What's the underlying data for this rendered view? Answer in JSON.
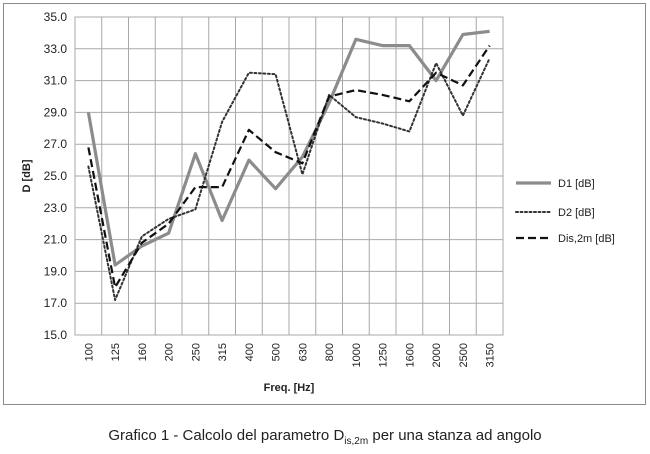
{
  "caption": {
    "prefix": "Grafico 1 - Calcolo del parametro D",
    "subscript": "is,2m",
    "suffix": " per una stanza ad angolo"
  },
  "chart_data": {
    "type": "line",
    "xlabel": "Freq. [Hz]",
    "ylabel": "D [dB]",
    "ylim": [
      15.0,
      35.0
    ],
    "yticks": [
      "15.0",
      "17.0",
      "19.0",
      "21.0",
      "23.0",
      "25.0",
      "27.0",
      "29.0",
      "31.0",
      "33.0",
      "35.0"
    ],
    "categories": [
      "100",
      "125",
      "160",
      "200",
      "250",
      "315",
      "400",
      "500",
      "630",
      "800",
      "1000",
      "1250",
      "1600",
      "2000",
      "2500",
      "3150"
    ],
    "grid": true,
    "legend_position": "right",
    "series": [
      {
        "name": "D1 [dB]",
        "style": "solid",
        "color": "#8c8c8c",
        "values": [
          29.0,
          19.4,
          20.6,
          21.4,
          26.4,
          22.2,
          26.0,
          24.2,
          26.2,
          29.6,
          33.6,
          33.2,
          33.2,
          31.0,
          33.9,
          34.1
        ]
      },
      {
        "name": "D2 [dB]",
        "style": "dotted",
        "color": "#333333",
        "values": [
          25.6,
          17.2,
          21.2,
          22.3,
          22.9,
          28.4,
          31.5,
          31.4,
          25.1,
          30.1,
          28.7,
          28.3,
          27.8,
          32.1,
          28.8,
          32.4
        ]
      },
      {
        "name": "Dis,2m [dB]",
        "style": "dashed",
        "color": "#111111",
        "values": [
          26.8,
          18.0,
          20.8,
          22.0,
          24.3,
          24.3,
          27.9,
          26.5,
          25.8,
          30.0,
          30.4,
          30.1,
          29.7,
          31.5,
          30.7,
          33.2
        ]
      }
    ]
  }
}
